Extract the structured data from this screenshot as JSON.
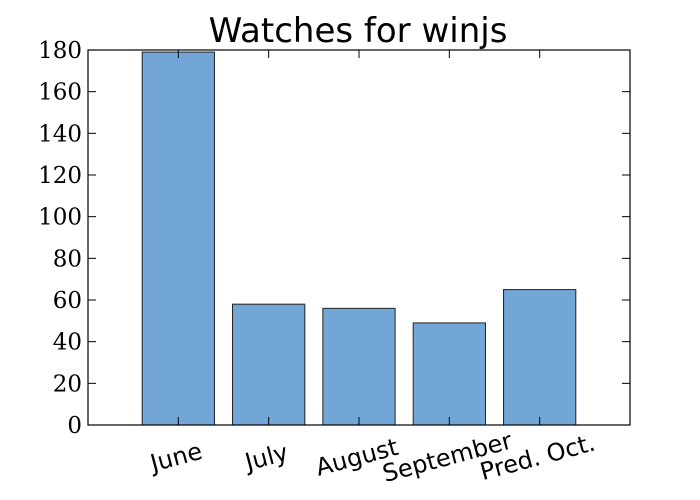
{
  "chart_data": {
    "type": "bar",
    "title": "Watches for winjs",
    "xlabel": "",
    "ylabel": "",
    "categories": [
      "June",
      "July",
      "August",
      "September",
      "Pred. Oct."
    ],
    "values": [
      179,
      58,
      56,
      49,
      65
    ],
    "ylim": [
      0,
      180
    ],
    "yticks": [
      0,
      20,
      40,
      60,
      80,
      100,
      120,
      140,
      160,
      180
    ],
    "xlim": [
      0,
      6
    ],
    "grid": false,
    "bar_color": "#72a6d6"
  }
}
